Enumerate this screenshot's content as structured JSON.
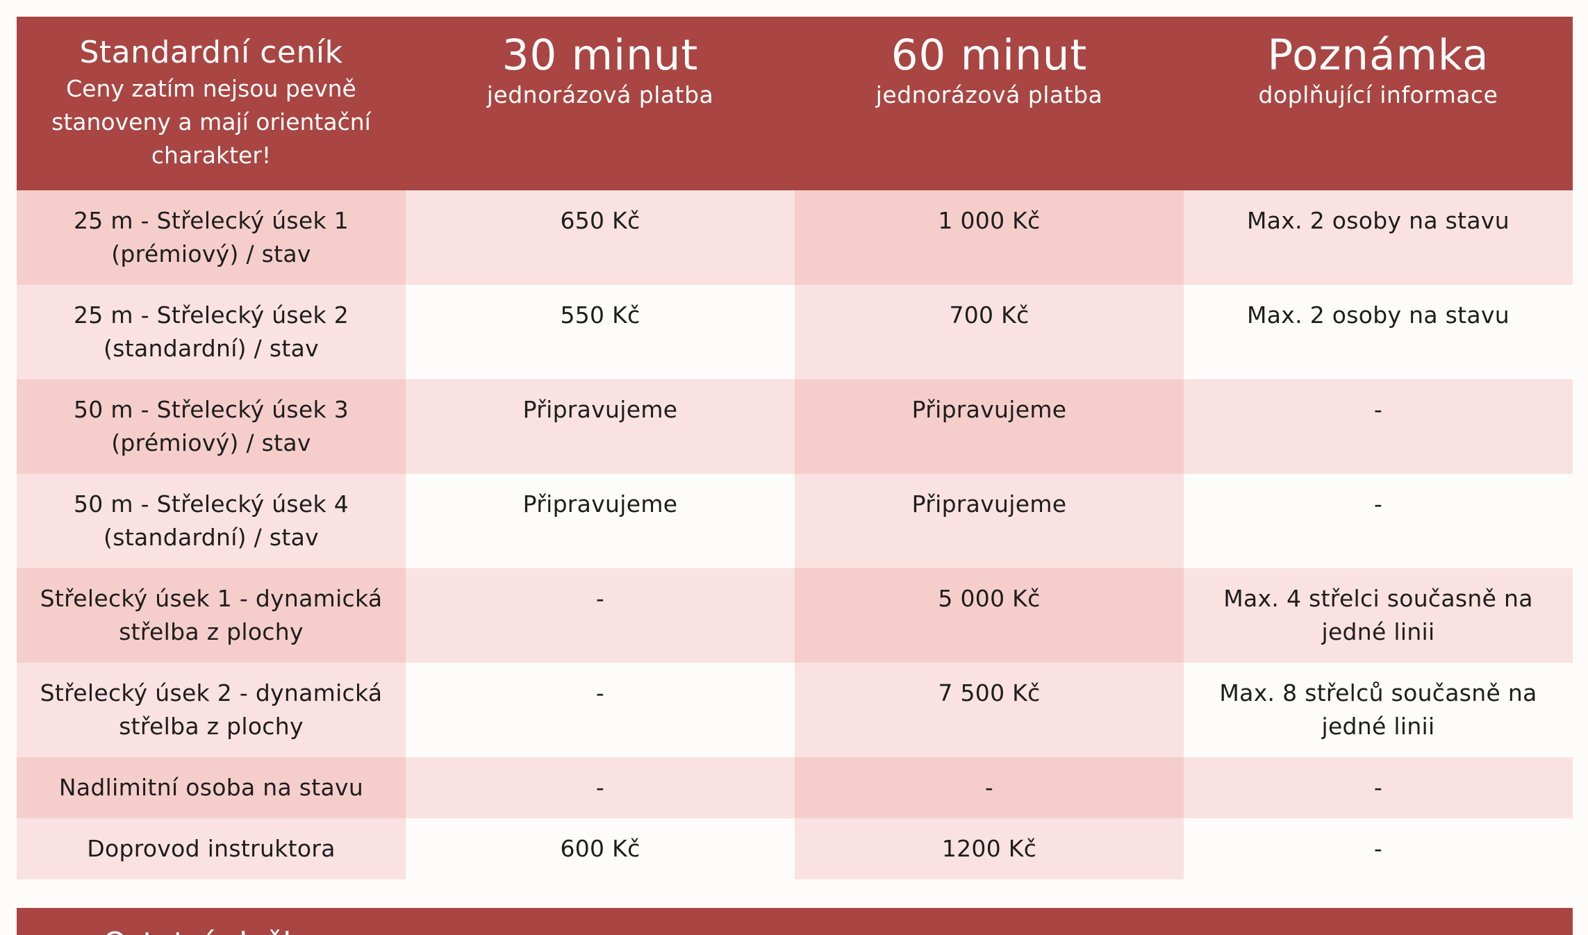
{
  "header": {
    "first": {
      "title": "Standardní ceník",
      "subtitle": "Ceny zatím nejsou pevně stanoveny a mají orientační charakter!"
    },
    "columns": [
      {
        "title": "30 minut",
        "subtitle": "jednorázová platba"
      },
      {
        "title": "60 minut",
        "subtitle": "jednorázová platba"
      },
      {
        "title": "Poznámka",
        "subtitle": "doplňující informace"
      }
    ]
  },
  "rows": [
    {
      "name": "25 m - Střelecký úsek 1 (prémiový) / stav",
      "price30": "650 Kč",
      "price60": "1 000 Kč",
      "note": "Max. 2 osoby na stavu"
    },
    {
      "name": "25 m - Střelecký úsek 2 (standardní) / stav",
      "price30": "550 Kč",
      "price60": "700 Kč",
      "note": "Max. 2 osoby na stavu"
    },
    {
      "name": "50 m - Střelecký úsek 3 (prémiový) / stav",
      "price30": "Připravujeme",
      "price60": "Připravujeme",
      "note": "-"
    },
    {
      "name": "50 m - Střelecký úsek 4 (standardní) / stav",
      "price30": "Připravujeme",
      "price60": "Připravujeme",
      "note": "-"
    },
    {
      "name": "Střelecký úsek 1 - dynamická střelba z plochy",
      "price30": "-",
      "price60": "5 000 Kč",
      "note": "Max. 4 střelci současně na jedné linii"
    },
    {
      "name": "Střelecký úsek 2 - dynamická střelba z plochy",
      "price30": "-",
      "price60": "7 500 Kč",
      "note": "Max. 8 střelců současně na jedné linii"
    },
    {
      "name": "Nadlimitní osoba na stavu",
      "price30": "-",
      "price60": "-",
      "note": "-"
    },
    {
      "name": "Doprovod instruktora",
      "price30": "600 Kč",
      "price60": "1200 Kč",
      "note": "-"
    }
  ],
  "second_table": {
    "partial_title": "Ostatní služby"
  },
  "colors": {
    "header_bg": "#a94542",
    "shade_dark": "#f5cecb",
    "shade_light": "#f9e2e1",
    "background": "#fdfcfb"
  }
}
